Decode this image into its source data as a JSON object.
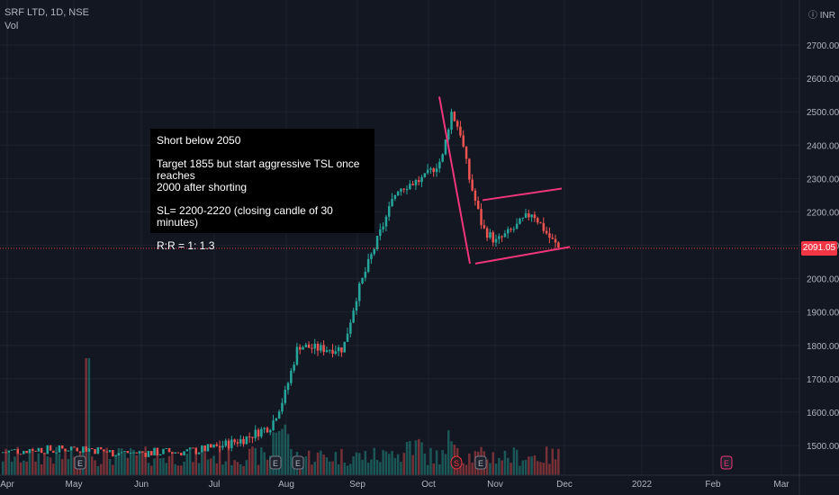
{
  "header": {
    "symbol_line": "SRF LTD, 1D, NSE",
    "volume_label": "Vol",
    "currency": "INR"
  },
  "note": {
    "line1": "Short below 2050",
    "line2": "Target 1855 but start aggressive TSL once reaches",
    "line3": "2000 after shorting",
    "line4": "SL= 2200-2220 (closing candle of 30 minutes)",
    "line5": "R:R = 1: 1.3"
  },
  "last_price": "2091.05",
  "colors": {
    "background": "#131722",
    "up": "#26a69a",
    "down": "#ef5350",
    "trendline": "#f0357a",
    "price_tag": "#f23645"
  },
  "chart_data": {
    "type": "candlestick",
    "price_axis_ticks": [
      "1500.00",
      "1600.00",
      "1700.00",
      "1800.00",
      "1900.00",
      "2000.00",
      "2100.00",
      "2200.00",
      "2300.00",
      "2400.00",
      "2500.00",
      "2600.00",
      "2700.00"
    ],
    "time_axis_ticks": [
      "Apr",
      "May",
      "Jun",
      "Jul",
      "Aug",
      "Sep",
      "Oct",
      "Nov",
      "Dec",
      "2022",
      "Feb",
      "Mar"
    ],
    "ylim": [
      1420,
      2800
    ],
    "price_trend": [
      [
        0,
        1480
      ],
      [
        20,
        1485
      ],
      [
        40,
        1490
      ],
      [
        60,
        1485
      ],
      [
        80,
        1495
      ],
      [
        100,
        1490
      ],
      [
        120,
        1480
      ],
      [
        150,
        1478
      ],
      [
        180,
        1480
      ],
      [
        210,
        1482
      ],
      [
        240,
        1495
      ],
      [
        270,
        1520
      ],
      [
        300,
        1560
      ],
      [
        315,
        1650
      ],
      [
        330,
        1800
      ],
      [
        350,
        1790
      ],
      [
        380,
        1790
      ],
      [
        395,
        1950
      ],
      [
        410,
        2060
      ],
      [
        430,
        2200
      ],
      [
        440,
        2270
      ],
      [
        470,
        2300
      ],
      [
        490,
        2360
      ],
      [
        500,
        2500
      ],
      [
        510,
        2440
      ],
      [
        520,
        2300
      ],
      [
        535,
        2150
      ],
      [
        550,
        2110
      ],
      [
        570,
        2150
      ],
      [
        590,
        2200
      ],
      [
        610,
        2120
      ],
      [
        620,
        2090
      ]
    ],
    "trendlines": [
      {
        "from": [
          488,
          2545
        ],
        "to": [
          522,
          2045
        ]
      },
      {
        "from": [
          528,
          2045
        ],
        "to": [
          633,
          2095
        ]
      },
      {
        "from": [
          536,
          2235
        ],
        "to": [
          624,
          2270
        ]
      }
    ],
    "event_markers": [
      {
        "label": "E",
        "x": 89
      },
      {
        "label": "E",
        "x": 306
      },
      {
        "label": "E",
        "x": 331
      },
      {
        "label": "S",
        "x": 507
      },
      {
        "label": "E",
        "x": 534
      },
      {
        "label": "E",
        "x": 807
      }
    ]
  }
}
